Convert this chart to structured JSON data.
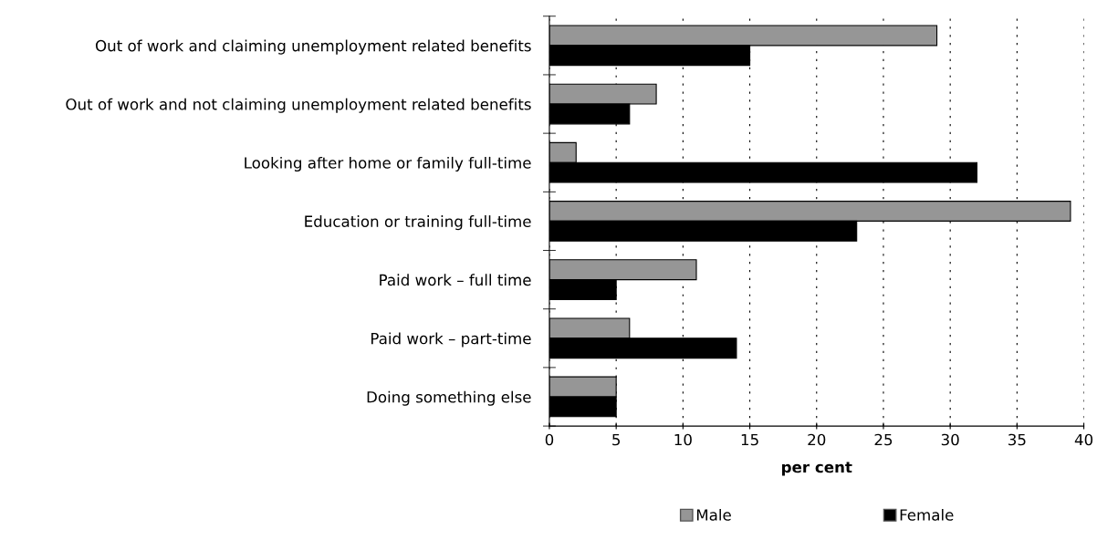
{
  "chart_data": {
    "type": "bar",
    "orientation": "horizontal",
    "xlabel": "per cent",
    "categories": [
      "Out of work and claiming unemployment related benefits",
      "Out of work and not claiming unemployment related benefits",
      "Looking after home or family full-time",
      "Education or training full-time",
      "Paid work – full time",
      "Paid work – part-time",
      "Doing something else"
    ],
    "series": [
      {
        "name": "Male",
        "color": "#969696",
        "values": [
          29,
          8,
          2,
          39,
          11,
          6,
          5
        ]
      },
      {
        "name": "Female",
        "color": "#000000",
        "values": [
          15,
          6,
          32,
          23,
          5,
          14,
          5
        ]
      }
    ],
    "xlim": [
      0,
      40
    ],
    "xticks": [
      0,
      5,
      10,
      15,
      20,
      25,
      30,
      35,
      40
    ],
    "grid": "x",
    "legend": "bottom"
  }
}
